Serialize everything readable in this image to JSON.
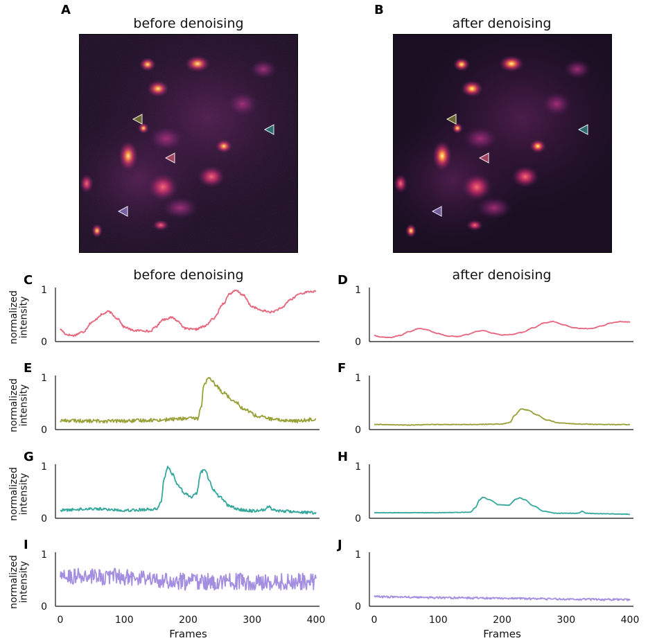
{
  "figure": {
    "panel_letters": [
      "A",
      "B",
      "C",
      "D",
      "E",
      "F",
      "G",
      "H",
      "I",
      "J"
    ],
    "image_titles": {
      "left": "before denoising",
      "right": "after denoising"
    },
    "trace_titles": {
      "left": "before denoising",
      "right": "after denoising"
    }
  },
  "colors": {
    "red": "#e6667d",
    "olive": "#98a037",
    "teal": "#33a79b",
    "purple": "#a48ee0",
    "image_bg": "#1a0f22",
    "axis": "#111111"
  },
  "chart_data": [
    {
      "panel": "C",
      "type": "line",
      "series_color": "red",
      "title": "before denoising",
      "xlabel": "",
      "ylabel": "normalized\nintensity",
      "xlim": [
        0,
        400
      ],
      "ylim": [
        0,
        1
      ],
      "yticks": [
        0,
        1
      ],
      "x": [
        0,
        10,
        20,
        35,
        50,
        65,
        75,
        90,
        100,
        115,
        130,
        140,
        150,
        160,
        175,
        185,
        195,
        210,
        225,
        240,
        255,
        265,
        275,
        285,
        300,
        315,
        330,
        345,
        360,
        375,
        390,
        400
      ],
      "values": [
        0.2,
        0.1,
        0.08,
        0.15,
        0.35,
        0.5,
        0.56,
        0.42,
        0.25,
        0.18,
        0.18,
        0.16,
        0.26,
        0.4,
        0.44,
        0.36,
        0.22,
        0.2,
        0.26,
        0.42,
        0.72,
        0.92,
        0.98,
        0.9,
        0.66,
        0.58,
        0.55,
        0.62,
        0.8,
        0.92,
        0.96,
        0.96
      ],
      "noise": 0.02
    },
    {
      "panel": "D",
      "type": "line",
      "series_color": "red",
      "title": "after denoising",
      "xlabel": "",
      "ylabel": "",
      "xlim": [
        0,
        400
      ],
      "ylim": [
        0,
        1
      ],
      "yticks": [
        0,
        1
      ],
      "x": [
        0,
        10,
        25,
        40,
        55,
        70,
        80,
        100,
        115,
        130,
        145,
        160,
        170,
        185,
        200,
        215,
        230,
        250,
        265,
        280,
        295,
        310,
        325,
        340,
        355,
        370,
        385,
        400
      ],
      "values": [
        0.08,
        0.05,
        0.04,
        0.08,
        0.16,
        0.22,
        0.2,
        0.12,
        0.07,
        0.06,
        0.1,
        0.16,
        0.18,
        0.13,
        0.09,
        0.1,
        0.14,
        0.24,
        0.33,
        0.36,
        0.3,
        0.24,
        0.22,
        0.22,
        0.27,
        0.33,
        0.36,
        0.35
      ],
      "noise": 0.006
    },
    {
      "panel": "E",
      "type": "line",
      "series_color": "olive",
      "title": "",
      "xlabel": "",
      "ylabel": "normalized\nintensity",
      "xlim": [
        0,
        400
      ],
      "ylim": [
        0,
        1
      ],
      "yticks": [
        0,
        1
      ],
      "x": [
        0,
        50,
        100,
        150,
        200,
        215,
        220,
        225,
        232,
        238,
        245,
        255,
        270,
        290,
        310,
        340,
        370,
        400
      ],
      "values": [
        0.14,
        0.13,
        0.13,
        0.15,
        0.18,
        0.18,
        0.4,
        0.88,
        0.98,
        0.92,
        0.82,
        0.7,
        0.55,
        0.35,
        0.22,
        0.15,
        0.13,
        0.17
      ],
      "noise": 0.035
    },
    {
      "panel": "F",
      "type": "line",
      "series_color": "olive",
      "title": "",
      "xlabel": "",
      "ylabel": "",
      "xlim": [
        0,
        400
      ],
      "ylim": [
        0,
        1
      ],
      "yticks": [
        0,
        1
      ],
      "x": [
        0,
        50,
        100,
        150,
        200,
        212,
        220,
        230,
        240,
        255,
        270,
        290,
        320,
        360,
        400
      ],
      "values": [
        0.06,
        0.05,
        0.06,
        0.06,
        0.07,
        0.1,
        0.25,
        0.37,
        0.35,
        0.25,
        0.15,
        0.09,
        0.07,
        0.06,
        0.06
      ],
      "noise": 0.006
    },
    {
      "panel": "G",
      "type": "line",
      "series_color": "teal",
      "title": "",
      "xlabel": "",
      "ylabel": "normalized\nintensity",
      "xlim": [
        0,
        400
      ],
      "ylim": [
        0,
        1
      ],
      "yticks": [
        0,
        1
      ],
      "x": [
        0,
        50,
        100,
        150,
        158,
        162,
        168,
        175,
        185,
        195,
        205,
        213,
        220,
        226,
        232,
        240,
        250,
        265,
        280,
        300,
        318,
        325,
        335,
        350,
        400
      ],
      "values": [
        0.12,
        0.15,
        0.12,
        0.14,
        0.3,
        0.75,
        0.98,
        0.85,
        0.6,
        0.45,
        0.38,
        0.46,
        0.88,
        0.95,
        0.75,
        0.52,
        0.38,
        0.2,
        0.13,
        0.11,
        0.12,
        0.2,
        0.12,
        0.1,
        0.07
      ],
      "noise": 0.028
    },
    {
      "panel": "H",
      "type": "line",
      "series_color": "teal",
      "title": "",
      "xlabel": "",
      "ylabel": "",
      "xlim": [
        0,
        400
      ],
      "ylim": [
        0,
        1
      ],
      "yticks": [
        0,
        1
      ],
      "x": [
        0,
        50,
        100,
        150,
        158,
        165,
        170,
        180,
        195,
        210,
        222,
        228,
        235,
        250,
        265,
        285,
        320,
        325,
        332,
        350,
        400
      ],
      "values": [
        0.07,
        0.07,
        0.07,
        0.08,
        0.17,
        0.33,
        0.38,
        0.33,
        0.23,
        0.22,
        0.34,
        0.37,
        0.33,
        0.2,
        0.1,
        0.06,
        0.06,
        0.1,
        0.06,
        0.05,
        0.04
      ],
      "noise": 0.005
    },
    {
      "panel": "I",
      "type": "line",
      "series_color": "purple",
      "title": "",
      "xlabel": "Frames",
      "ylabel": "normalized\nintensity",
      "xlim": [
        0,
        400
      ],
      "ylim": [
        0,
        1
      ],
      "yticks": [
        0,
        1
      ],
      "xticks": [
        0,
        100,
        200,
        300,
        400
      ],
      "x": [
        0,
        100,
        200,
        300,
        400
      ],
      "values": [
        0.55,
        0.55,
        0.45,
        0.45,
        0.45
      ],
      "noise": 0.17
    },
    {
      "panel": "J",
      "type": "line",
      "series_color": "purple",
      "title": "",
      "xlabel": "Frames",
      "ylabel": "",
      "xlim": [
        0,
        400
      ],
      "ylim": [
        0,
        1
      ],
      "yticks": [
        0,
        1
      ],
      "xticks": [
        0,
        100,
        200,
        300,
        400
      ],
      "x": [
        0,
        100,
        200,
        300,
        400
      ],
      "values": [
        0.15,
        0.13,
        0.12,
        0.1,
        0.09
      ],
      "noise": 0.02
    }
  ]
}
